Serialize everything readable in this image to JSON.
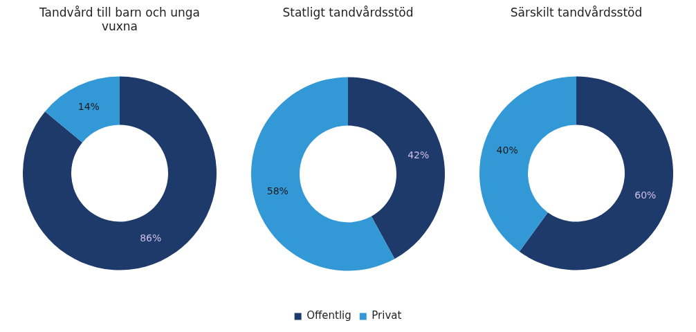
{
  "chart_data": [
    {
      "type": "donut",
      "title": "Tandvård till barn och unga vuxna",
      "categories": [
        null,
        null
      ],
      "values": [
        86,
        14
      ],
      "colors": [
        "#1e3a6a",
        "#3398d6"
      ],
      "value_labels": [
        "86%",
        "14%"
      ]
    },
    {
      "type": "donut",
      "title": "Statligt tandvårdsstöd",
      "categories": [
        "Offentlig",
        "Privat"
      ],
      "values": [
        42,
        58
      ],
      "colors": [
        "#1e3a6a",
        "#3398d6"
      ],
      "value_labels": [
        "42%",
        "58%"
      ],
      "legend": "bottom"
    },
    {
      "type": "donut",
      "title": "Särskilt tandvårdsstöd",
      "categories": [
        null,
        null
      ],
      "values": [
        60,
        40
      ],
      "colors": [
        "#1e3a6a",
        "#3398d6"
      ],
      "value_labels": [
        "60%",
        "40%"
      ]
    }
  ]
}
